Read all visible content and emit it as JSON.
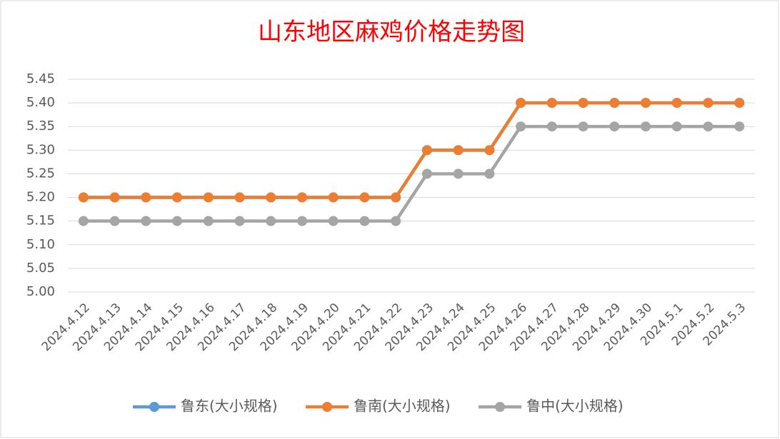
{
  "chart_data": {
    "type": "line",
    "title": "山东地区麻鸡价格走势图",
    "categories": [
      "2024.4.12",
      "2024.4.13",
      "2024.4.14",
      "2024.4.15",
      "2024.4.16",
      "2024.4.17",
      "2024.4.18",
      "2024.4.19",
      "2024.4.20",
      "2024.4.21",
      "2024.4.22",
      "2024.4.23",
      "2024.4.24",
      "2024.4.25",
      "2024.4.26",
      "2024.4.27",
      "2024.4.28",
      "2024.4.29",
      "2024.4.30",
      "2024.5.1",
      "2024.5.2",
      "2024.5.3"
    ],
    "series": [
      {
        "name": "鲁东(大小规格)",
        "color": "#5b9bd5",
        "values": [
          5.2,
          5.2,
          5.2,
          5.2,
          5.2,
          5.2,
          5.2,
          5.2,
          5.2,
          5.2,
          5.2,
          5.3,
          5.3,
          5.3,
          5.4,
          5.4,
          5.4,
          5.4,
          5.4,
          5.4,
          5.4,
          5.4
        ]
      },
      {
        "name": "鲁南(大小规格)",
        "color": "#ed7d31",
        "values": [
          5.2,
          5.2,
          5.2,
          5.2,
          5.2,
          5.2,
          5.2,
          5.2,
          5.2,
          5.2,
          5.2,
          5.3,
          5.3,
          5.3,
          5.4,
          5.4,
          5.4,
          5.4,
          5.4,
          5.4,
          5.4,
          5.4
        ]
      },
      {
        "name": "鲁中(大小规格)",
        "color": "#a5a5a5",
        "values": [
          5.15,
          5.15,
          5.15,
          5.15,
          5.15,
          5.15,
          5.15,
          5.15,
          5.15,
          5.15,
          5.15,
          5.25,
          5.25,
          5.25,
          5.35,
          5.35,
          5.35,
          5.35,
          5.35,
          5.35,
          5.35,
          5.35
        ]
      }
    ],
    "ylim": [
      5.0,
      5.45
    ],
    "yticks": [
      {
        "value": 5.0,
        "label": "5.00"
      },
      {
        "value": 5.05,
        "label": "5.05"
      },
      {
        "value": 5.1,
        "label": "5.10"
      },
      {
        "value": 5.15,
        "label": "5.15"
      },
      {
        "value": 5.2,
        "label": "5.20"
      },
      {
        "value": 5.25,
        "label": "5.25"
      },
      {
        "value": 5.3,
        "label": "5.30"
      },
      {
        "value": 5.35,
        "label": "5.35"
      },
      {
        "value": 5.4,
        "label": "5.40"
      },
      {
        "value": 5.45,
        "label": "5.45"
      }
    ],
    "grid": true,
    "legend": "bottom"
  }
}
